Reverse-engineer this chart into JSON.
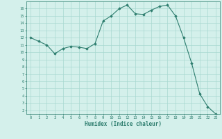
{
  "x": [
    0,
    1,
    2,
    3,
    4,
    5,
    6,
    7,
    8,
    9,
    10,
    11,
    12,
    13,
    14,
    15,
    16,
    17,
    18,
    19,
    20,
    21,
    22,
    23
  ],
  "y": [
    12.0,
    11.5,
    11.0,
    9.8,
    10.5,
    10.8,
    10.7,
    10.5,
    11.2,
    14.3,
    15.0,
    16.0,
    16.5,
    15.3,
    15.2,
    15.8,
    16.3,
    16.5,
    15.0,
    12.0,
    8.5,
    4.3,
    2.5,
    1.5
  ],
  "xlabel": "Humidex (Indice chaleur)",
  "xlim": [
    -0.5,
    23.5
  ],
  "ylim": [
    1.5,
    17
  ],
  "yticks": [
    2,
    3,
    4,
    5,
    6,
    7,
    8,
    9,
    10,
    11,
    12,
    13,
    14,
    15,
    16
  ],
  "xticks": [
    0,
    1,
    2,
    3,
    4,
    5,
    6,
    7,
    8,
    9,
    10,
    11,
    12,
    13,
    14,
    15,
    16,
    17,
    18,
    19,
    20,
    21,
    22,
    23
  ],
  "line_color": "#2d7d6e",
  "marker_color": "#2d7d6e",
  "bg_color": "#d4f0eb",
  "grid_color": "#a8d8d0",
  "tick_label_color": "#2d7d6e"
}
